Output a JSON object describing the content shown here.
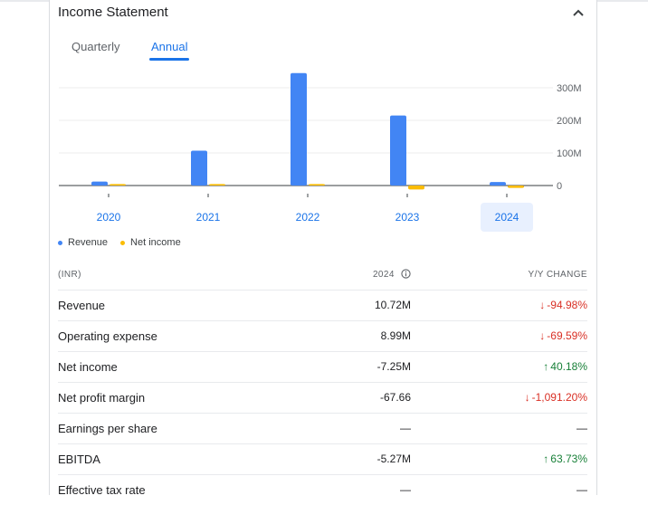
{
  "header": {
    "title": "Income Statement",
    "collapse_icon": "chevron-up-icon"
  },
  "tabs": [
    {
      "label": "Quarterly",
      "active": false
    },
    {
      "label": "Annual",
      "active": true
    }
  ],
  "chart_data": {
    "type": "bar",
    "categories": [
      "2020",
      "2021",
      "2022",
      "2023",
      "2024"
    ],
    "selected_category": "2024",
    "series": [
      {
        "name": "Revenue",
        "color": "#4285f4",
        "values": [
          12,
          107,
          345,
          215,
          10.72
        ]
      },
      {
        "name": "Net income",
        "color": "#fbbc04",
        "values": [
          0,
          2,
          2,
          -12,
          -7.25
        ]
      }
    ],
    "y_ticks": [
      "0",
      "100M",
      "200M",
      "300M"
    ],
    "y_tick_values": [
      0,
      100,
      200,
      300
    ],
    "ylim": [
      -20,
      330
    ],
    "grid": true,
    "legend_position": "bottom-left"
  },
  "table": {
    "headers": {
      "label": "(INR)",
      "year": "2024",
      "change": "Y/Y CHANGE"
    },
    "rows": [
      {
        "label": "Revenue",
        "value": "10.72M",
        "change": "-94.98%",
        "direction": "down"
      },
      {
        "label": "Operating expense",
        "value": "8.99M",
        "change": "-69.59%",
        "direction": "down"
      },
      {
        "label": "Net income",
        "value": "-7.25M",
        "change": "40.18%",
        "direction": "up"
      },
      {
        "label": "Net profit margin",
        "value": "-67.66",
        "change": "-1,091.20%",
        "direction": "down"
      },
      {
        "label": "Earnings per share",
        "value": "—",
        "change": "—",
        "direction": "none"
      },
      {
        "label": "EBITDA",
        "value": "-5.27M",
        "change": "63.73%",
        "direction": "up"
      },
      {
        "label": "Effective tax rate",
        "value": "—",
        "change": "—",
        "direction": "none"
      }
    ]
  }
}
